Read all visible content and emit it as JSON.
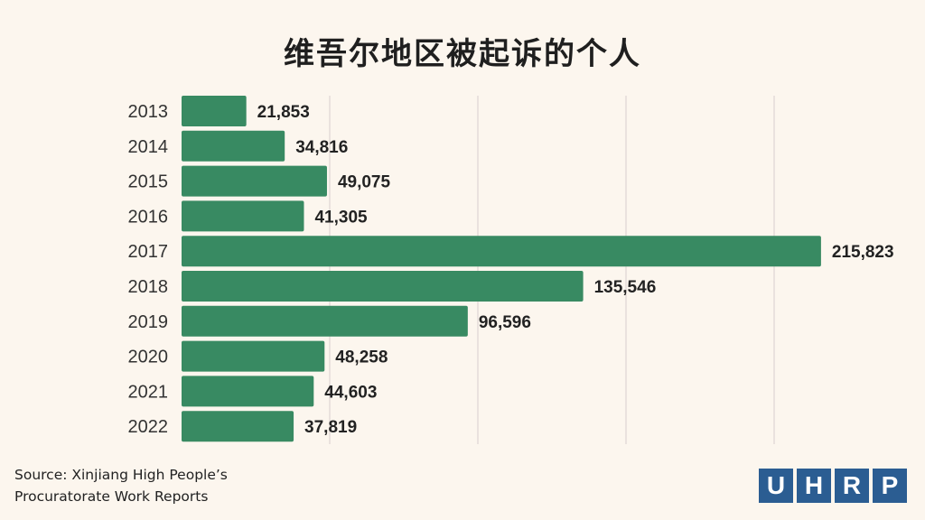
{
  "title": "维吾尔地区被起诉的个人",
  "source": {
    "line1": "Source: Xinjiang High People’s",
    "line2": "Procuratorate Work Reports"
  },
  "logo": {
    "letters": [
      "U",
      "H",
      "R",
      "P"
    ],
    "color": "#2b5d92"
  },
  "colors": {
    "bar": "#388a62",
    "background": "#fcf6ee",
    "grid": "#d9cfcf"
  },
  "chart_data": {
    "type": "bar",
    "orientation": "horizontal",
    "categories": [
      "2013",
      "2014",
      "2015",
      "2016",
      "2017",
      "2018",
      "2019",
      "2020",
      "2021",
      "2022"
    ],
    "values": [
      21853,
      34816,
      49075,
      41305,
      215823,
      135546,
      96596,
      48258,
      44603,
      37819
    ],
    "value_labels": [
      "21,853",
      "34,816",
      "49,075",
      "41,305",
      "215,823",
      "135,546",
      "96,596",
      "48,258",
      "44,603",
      "37,819"
    ],
    "title": "维吾尔地区被起诉的个人",
    "xlim": [
      0,
      250000
    ],
    "grid": true
  }
}
